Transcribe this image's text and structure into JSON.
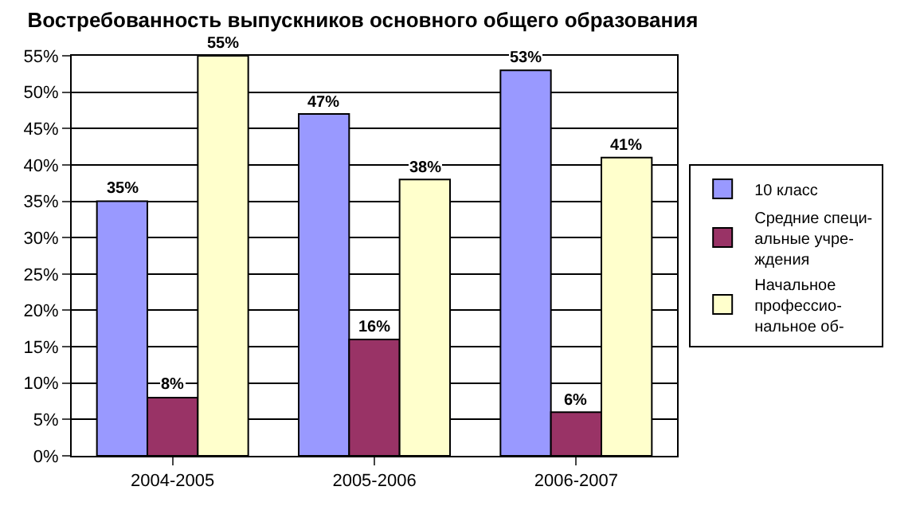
{
  "chart_data": {
    "type": "bar",
    "title": "Востребованность выпускников основного общего образования",
    "categories": [
      "2004-2005",
      "2005-2006",
      "2006-2007"
    ],
    "series": [
      {
        "name": "10 класс",
        "color": "#9999ff",
        "values": [
          35,
          47,
          53
        ],
        "value_labels": [
          "35%",
          "47%",
          "53%"
        ]
      },
      {
        "name": "Средние специ-\nальные учре-\nждения",
        "color": "#993366",
        "values": [
          8,
          16,
          6
        ],
        "value_labels": [
          "8%",
          "16%",
          "6%"
        ]
      },
      {
        "name": "Начальное\nпрофессио-\nнальное об-",
        "color": "#ffffcc",
        "values": [
          55,
          38,
          41
        ],
        "value_labels": [
          "55%",
          "38%",
          "41%"
        ]
      }
    ],
    "ylim": [
      0,
      55
    ],
    "yticks": [
      {
        "value": 0,
        "label": "0%"
      },
      {
        "value": 5,
        "label": "5%"
      },
      {
        "value": 10,
        "label": "10%"
      },
      {
        "value": 15,
        "label": "15%"
      },
      {
        "value": 20,
        "label": "20%"
      },
      {
        "value": 25,
        "label": "25%"
      },
      {
        "value": 30,
        "label": "30%"
      },
      {
        "value": 35,
        "label": "35%"
      },
      {
        "value": 40,
        "label": "40%"
      },
      {
        "value": 45,
        "label": "45%"
      },
      {
        "value": 50,
        "label": "50%"
      },
      {
        "value": 55,
        "label": "55%"
      }
    ],
    "grid": "y",
    "legend": "right"
  }
}
